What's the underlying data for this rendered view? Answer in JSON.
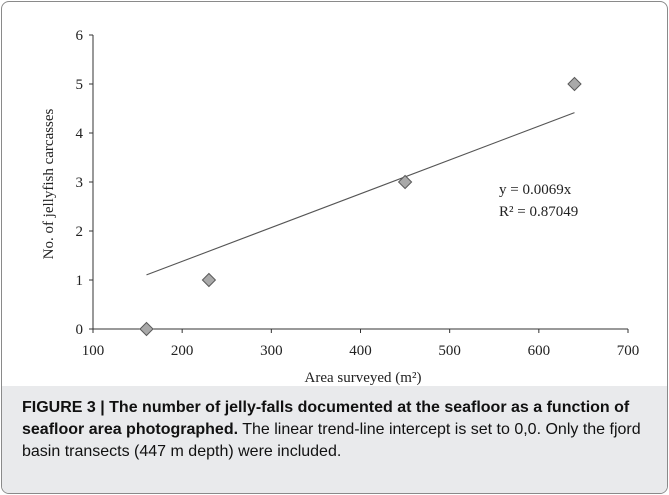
{
  "chart_data": {
    "type": "scatter",
    "x": [
      160,
      230,
      450,
      640
    ],
    "y": [
      0,
      1,
      3,
      5
    ],
    "xlabel": "Area surveyed (m²)",
    "ylabel": "No. of jellyfish carcasses",
    "xlim": [
      100,
      700
    ],
    "ylim": [
      0,
      6
    ],
    "xticks": [
      100,
      200,
      300,
      400,
      500,
      600,
      700
    ],
    "yticks": [
      0,
      1,
      2,
      3,
      4,
      5,
      6
    ],
    "trendline": {
      "type": "linear",
      "slope": 0.0069,
      "intercept": 0,
      "x_range": [
        160,
        640
      ],
      "equation_label": "y = 0.0069x",
      "r2_label": "R² = 0.87049"
    },
    "grid": false,
    "marker": "diamond",
    "marker_color": "#a9a9a9"
  },
  "caption": {
    "title": "FIGURE 3 | The number of jelly-falls documented at the seafloor as a function of seafloor area photographed.",
    "body": " The linear trend-line intercept is set to 0,0. Only the fjord basin transects (447 m depth) were included."
  }
}
